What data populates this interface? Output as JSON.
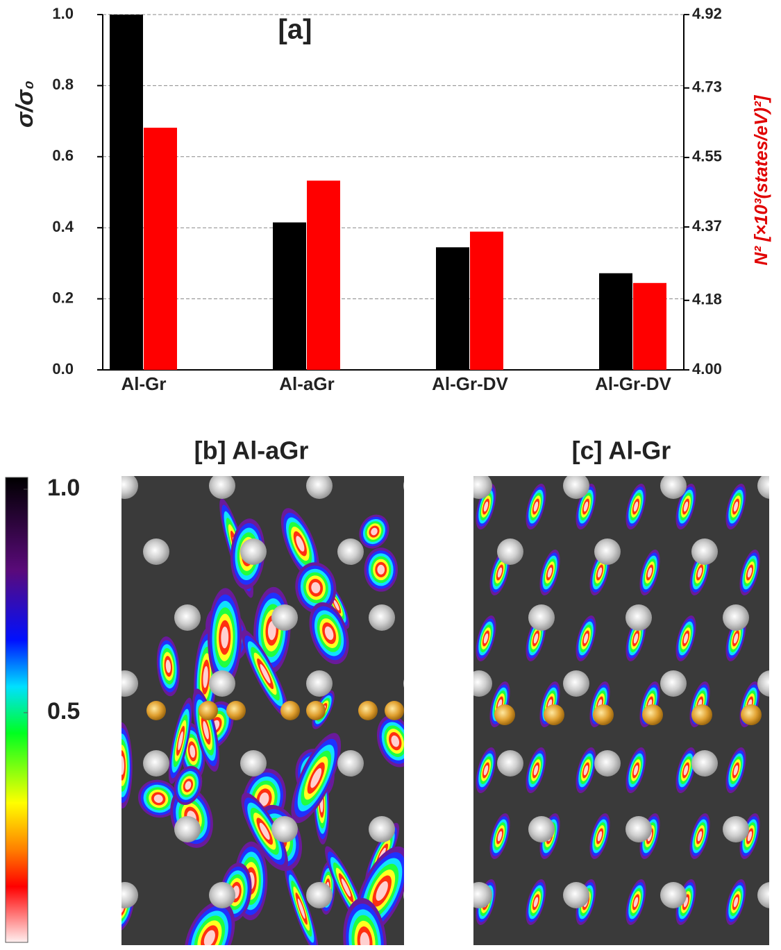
{
  "chart_data": {
    "type": "bar",
    "annotation": "[a]",
    "ylabel": "σ/σ₀",
    "y2label": "N² [×10³(states/eV)²]",
    "categories": [
      "Al-Gr",
      "Al-aGr",
      "Al-Gr-DV",
      "Al-Gr-DV"
    ],
    "series": [
      {
        "color": "#000000",
        "values": [
          1.0,
          0.415,
          0.345,
          0.272
        ]
      },
      {
        "color": "#ff0000",
        "axis": "y2",
        "values": [
          4.627,
          4.49,
          4.358,
          4.225
        ]
      }
    ],
    "ylim": [
      0,
      1
    ],
    "yticks": [
      {
        "value": 0,
        "label": "0.0"
      },
      0.2,
      0.4,
      0.6,
      0.8,
      {
        "value": 1,
        "label": "1.0"
      }
    ],
    "y2lim": [
      4.0,
      4.92
    ],
    "y2ticks": [
      {
        "value": 4.0,
        "label": "4.00"
      },
      4.18,
      4.37,
      4.55,
      4.73,
      4.92
    ],
    "grid": true
  },
  "panels": [
    {
      "title": "[b] Al-aGr"
    },
    {
      "title": "[c] Al-Gr"
    }
  ],
  "colorbar": {
    "lim": [
      0,
      1
    ],
    "ticks": [
      {
        "value": 1,
        "label": "1.0"
      },
      0.5
    ]
  }
}
